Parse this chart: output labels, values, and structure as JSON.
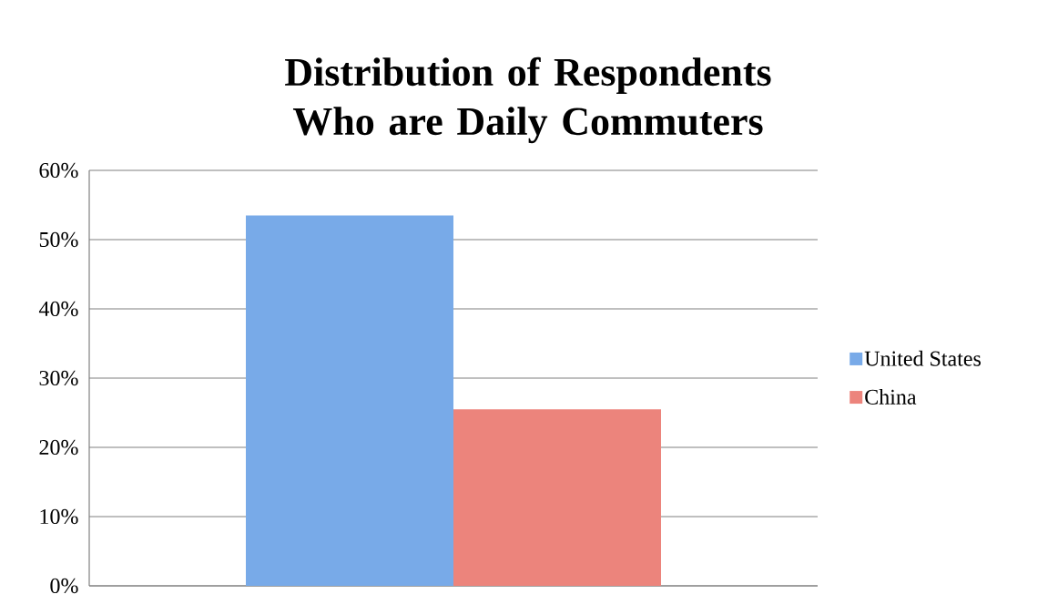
{
  "chart_data": {
    "type": "bar",
    "title": "Distribution of Respondents Who are Daily Commuters",
    "categories": [
      null
    ],
    "series": [
      {
        "name": "United States",
        "color": "#78aae8",
        "values": [
          53.5
        ]
      },
      {
        "name": "China",
        "color": "#ec847c",
        "values": [
          25.5
        ]
      }
    ],
    "ylim": [
      0,
      60
    ],
    "yticks": [
      {
        "value": 0,
        "label": "0%"
      },
      {
        "value": 10,
        "label": "10%"
      },
      {
        "value": 20,
        "label": "20%"
      },
      {
        "value": 30,
        "label": "30%"
      },
      {
        "value": 40,
        "label": "40%"
      },
      {
        "value": 50,
        "label": "50%"
      },
      {
        "value": 60,
        "label": "60%"
      }
    ],
    "grid": "y",
    "legend": "right"
  }
}
